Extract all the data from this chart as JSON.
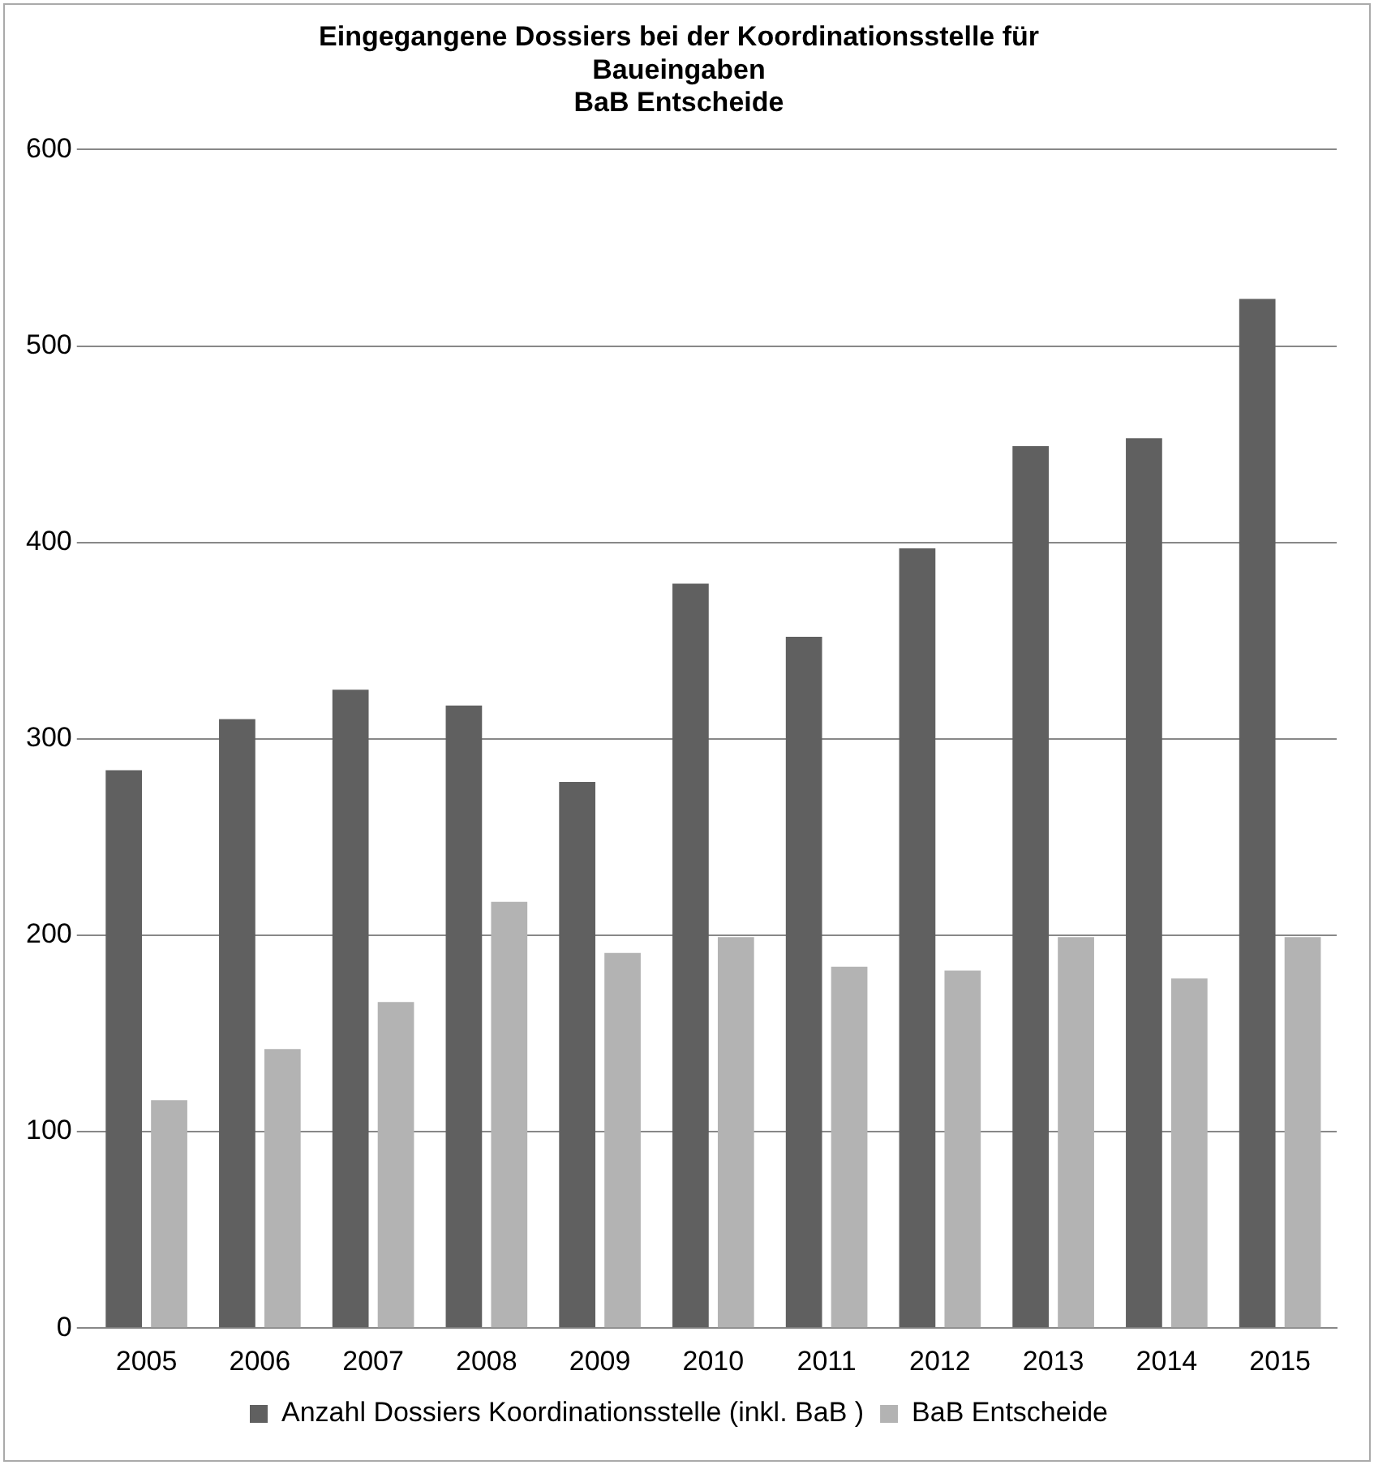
{
  "chart_data": {
    "type": "bar",
    "title": "Eingegangene Dossiers bei der Koordinationsstelle für\nBaueingaben\nBaB Entscheide",
    "categories": [
      "2005",
      "2006",
      "2007",
      "2008",
      "2009",
      "2010",
      "2011",
      "2012",
      "2013",
      "2014",
      "2015"
    ],
    "series": [
      {
        "name": "Anzahl Dossiers Koordinationsstelle (inkl. BaB )",
        "color": "#606060",
        "values": [
          284,
          310,
          325,
          317,
          278,
          379,
          352,
          397,
          449,
          453,
          524
        ]
      },
      {
        "name": "BaB Entscheide",
        "color": "#b3b3b3",
        "values": [
          116,
          142,
          166,
          217,
          191,
          199,
          184,
          182,
          199,
          178,
          199
        ]
      }
    ],
    "ylim": [
      0,
      600
    ],
    "yticks": [
      0,
      100,
      200,
      300,
      400,
      500,
      600
    ],
    "grid": "y",
    "legend": "bottom"
  }
}
